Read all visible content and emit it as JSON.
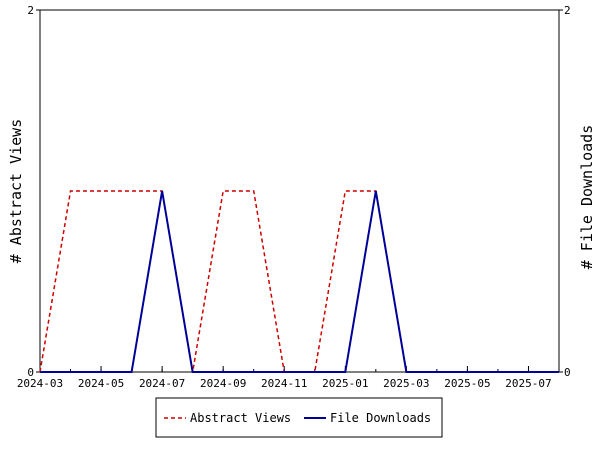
{
  "chart_data": {
    "type": "line",
    "title": "",
    "x_axis": {
      "type": "date",
      "range": [
        "2024-03",
        "2025-08"
      ],
      "tick_labels": [
        "2024-03",
        "2024-05",
        "2024-07",
        "2024-09",
        "2024-11",
        "2025-01",
        "2025-03",
        "2025-05",
        "2025-07"
      ]
    },
    "y_left": {
      "label": "# Abstract Views",
      "range": [
        0,
        2
      ],
      "tick_labels": [
        "0",
        "2"
      ]
    },
    "y_right": {
      "label": "# File Downloads",
      "range": [
        0,
        2
      ],
      "tick_labels": [
        "0",
        "2"
      ]
    },
    "grid": false,
    "legend_position": "bottom-center",
    "series": [
      {
        "name": "Abstract Views",
        "color": "#cc0000",
        "style": "dashed",
        "axis": "left",
        "points": [
          [
            "2024-03",
            0
          ],
          [
            "2024-04",
            1
          ],
          [
            "2024-05",
            1
          ],
          [
            "2024-06",
            1
          ],
          [
            "2024-07",
            1
          ],
          [
            "2024-08",
            0
          ],
          [
            "2024-09",
            1
          ],
          [
            "2024-10",
            1
          ],
          [
            "2024-11",
            0
          ],
          [
            "2024-12",
            0
          ],
          [
            "2025-01",
            1
          ],
          [
            "2025-02",
            1
          ],
          [
            "2025-03",
            0
          ],
          [
            "2025-04",
            0
          ],
          [
            "2025-05",
            0
          ],
          [
            "2025-06",
            0
          ],
          [
            "2025-07",
            0
          ],
          [
            "2025-08",
            0
          ]
        ]
      },
      {
        "name": "File Downloads",
        "color": "#000099",
        "style": "solid",
        "axis": "right",
        "points": [
          [
            "2024-03",
            0
          ],
          [
            "2024-04",
            0
          ],
          [
            "2024-05",
            0
          ],
          [
            "2024-06",
            0
          ],
          [
            "2024-07",
            1
          ],
          [
            "2024-08",
            0
          ],
          [
            "2024-09",
            0
          ],
          [
            "2024-10",
            0
          ],
          [
            "2024-11",
            0
          ],
          [
            "2024-12",
            0
          ],
          [
            "2025-01",
            0
          ],
          [
            "2025-02",
            1
          ],
          [
            "2025-03",
            0
          ],
          [
            "2025-04",
            0
          ],
          [
            "2025-05",
            0
          ],
          [
            "2025-06",
            0
          ],
          [
            "2025-07",
            0
          ],
          [
            "2025-08",
            0
          ]
        ]
      }
    ]
  }
}
